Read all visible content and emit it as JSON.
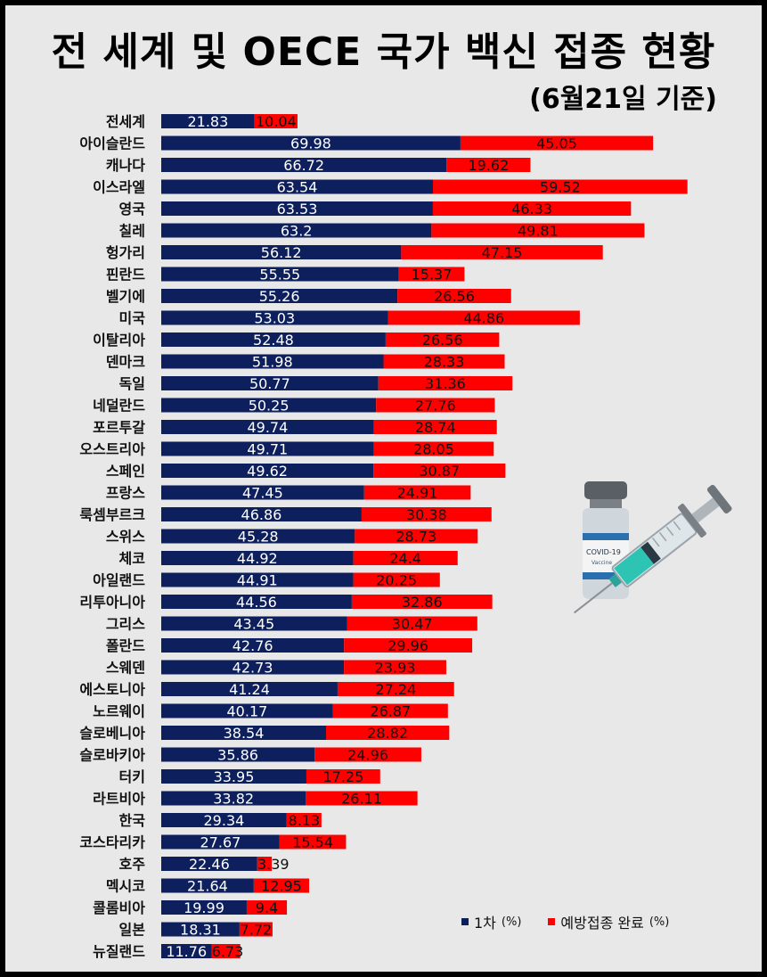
{
  "header": {
    "title": "전 세계 및 OECE 국가 백신 접종 현황",
    "subtitle": "(6월21일 기준)"
  },
  "legend": {
    "first_dose": "1차",
    "first_dose_unit": "(%)",
    "fully_vaccinated": "예방접종 완료",
    "fully_vaccinated_unit": "(%)"
  },
  "colors": {
    "first_dose": "#0d1f5c",
    "fully_vaccinated": "#ff0000",
    "background": "#e8e8e8"
  },
  "chart_data": {
    "type": "bar",
    "orientation": "horizontal",
    "stacked": true,
    "title": "전 세계 및 OECE 국가 백신 접종 현황",
    "subtitle": "(6월21일 기준)",
    "categories": [
      "전세계",
      "아이슬란드",
      "캐나다",
      "이스라엘",
      "영국",
      "칠레",
      "헝가리",
      "핀란드",
      "벨기에",
      "미국",
      "이탈리아",
      "덴마크",
      "독일",
      "네덜란드",
      "포르투갈",
      "오스트리아",
      "스페인",
      "프랑스",
      "룩셈부르크",
      "스위스",
      "체코",
      "아일랜드",
      "리투아니아",
      "그리스",
      "폴란드",
      "스웨덴",
      "에스토니아",
      "노르웨이",
      "슬로베니아",
      "슬로바키아",
      "터키",
      "라트비아",
      "한국",
      "코스타리카",
      "호주",
      "멕시코",
      "콜롬비아",
      "일본",
      "뉴질랜드"
    ],
    "series": [
      {
        "name": "1차 (%)",
        "values": [
          21.83,
          69.98,
          66.72,
          63.54,
          63.53,
          63.2,
          56.12,
          55.55,
          55.26,
          53.03,
          52.48,
          51.98,
          50.77,
          50.25,
          49.74,
          49.71,
          49.62,
          47.45,
          46.86,
          45.28,
          44.92,
          44.91,
          44.56,
          43.45,
          42.76,
          42.73,
          41.24,
          40.17,
          38.54,
          35.86,
          33.95,
          33.82,
          29.34,
          27.67,
          22.46,
          21.64,
          19.99,
          18.31,
          11.76
        ]
      },
      {
        "name": "예방접종 완료 (%)",
        "values": [
          10.04,
          45.05,
          19.62,
          59.52,
          46.33,
          49.81,
          47.15,
          15.37,
          26.56,
          44.86,
          26.56,
          28.33,
          31.36,
          27.76,
          28.74,
          28.05,
          30.87,
          24.91,
          30.38,
          28.73,
          24.4,
          20.25,
          32.86,
          30.47,
          29.96,
          23.93,
          27.24,
          26.87,
          28.82,
          24.96,
          17.25,
          26.11,
          8.13,
          15.54,
          3.39,
          12.95,
          9.4,
          7.72,
          6.73
        ]
      }
    ],
    "legend_position": "bottom-right",
    "grid": false
  }
}
